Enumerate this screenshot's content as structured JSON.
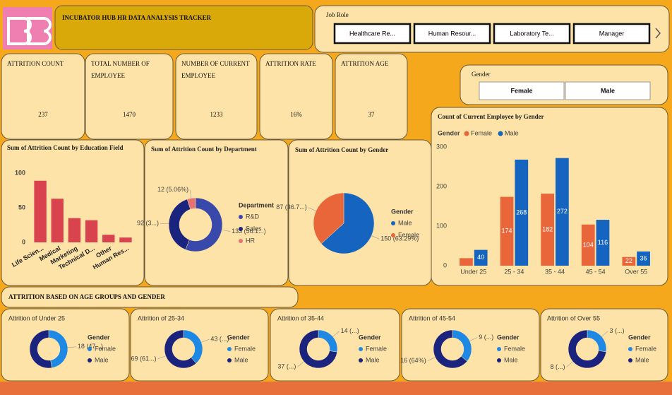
{
  "header": {
    "title": "INCUBATOR HUB HR DATA ANALYSIS TRACKER"
  },
  "job_role_slicer": {
    "label": "Job Role",
    "items": [
      "Healthcare Re...",
      "Human Resour...",
      "Laboratory Te...",
      "Manager"
    ]
  },
  "gender_slicer": {
    "label": "Gender",
    "items": [
      "Female",
      "Male"
    ]
  },
  "kpis": [
    {
      "label": "ATTRITION COUNT",
      "value": "237"
    },
    {
      "label": "TOTAL NUMBER OF EMPLOYEE",
      "value": "1470"
    },
    {
      "label": "NUMBER OF CURRENT EMPLOYEE",
      "value": "1233"
    },
    {
      "label": "ATTRITION RATE",
      "value": "16%"
    },
    {
      "label": "ATTRITION AGE",
      "value": "37"
    }
  ],
  "section_title": "ATTRITION BASED ON AGE GROUPS AND GENDER",
  "chart_data": [
    {
      "type": "bar",
      "title": "Sum of Attrition Count by Education Field",
      "categories": [
        "Life Scien...",
        "Medical",
        "Marketing",
        "Technical D...",
        "Other",
        "Human Res..."
      ],
      "values": [
        89,
        63,
        35,
        32,
        11,
        7
      ],
      "color": "#d9434e",
      "ylim": [
        0,
        100
      ],
      "yticks": [
        0,
        50,
        100
      ],
      "grid": false
    },
    {
      "type": "pie",
      "donut": true,
      "title": "Sum of Attrition Count by Department",
      "legend_title": "Department",
      "categories": [
        "R&D",
        "Sales",
        "HR"
      ],
      "values": [
        133,
        92,
        12
      ],
      "value_labels": [
        "133 (56.1...)",
        "92 (3...)",
        "12 (5.06%)"
      ],
      "colors": [
        "#3949ab",
        "#1a237e",
        "#e57373"
      ]
    },
    {
      "type": "pie",
      "donut": false,
      "title": "Sum of Attrition Count by Gender",
      "legend_title": "Gender",
      "categories": [
        "Male",
        "Female"
      ],
      "values": [
        150,
        87
      ],
      "value_labels": [
        "150 (63.29%)",
        "87 (36.7...)"
      ],
      "colors": [
        "#1565c0",
        "#e8663a"
      ]
    },
    {
      "type": "bar",
      "title": "Count of Current Employee by Gender",
      "legend_title": "Gender",
      "categories": [
        "Under 25",
        "25 - 34",
        "35 - 44",
        "45 - 54",
        "Over 55"
      ],
      "series": [
        {
          "name": "Female",
          "color": "#e8663a",
          "values": [
            19,
            174,
            182,
            104,
            22
          ],
          "value_labels": [
            null,
            "174",
            "182",
            "104",
            "22"
          ]
        },
        {
          "name": "Male",
          "color": "#1565c0",
          "values": [
            40,
            268,
            272,
            116,
            36
          ],
          "value_labels": [
            "40",
            "268",
            "272",
            "116",
            "36"
          ]
        }
      ],
      "ylim": [
        0,
        300
      ],
      "yticks": [
        0,
        100,
        200,
        300
      ],
      "grid": false
    },
    {
      "type": "pie",
      "donut": true,
      "title": "Attrition of Under 25",
      "legend_title": "Gender",
      "categories": [
        "Female",
        "Male"
      ],
      "values": [
        18,
        20
      ],
      "value_labels": [
        "18 (47...)",
        null
      ],
      "colors": [
        "#1e88e5",
        "#1a237e"
      ]
    },
    {
      "type": "pie",
      "donut": true,
      "title": "Attrition of 25-34",
      "legend_title": "Gender",
      "categories": [
        "Female",
        "Male"
      ],
      "values": [
        43,
        69
      ],
      "value_labels": [
        "43 (...)",
        "69 (61...)"
      ],
      "colors": [
        "#1e88e5",
        "#1a237e"
      ]
    },
    {
      "type": "pie",
      "donut": true,
      "title": "Attrition of 35-44",
      "legend_title": "Gender",
      "categories": [
        "Female",
        "Male"
      ],
      "values": [
        14,
        37
      ],
      "value_labels": [
        "14 (...)",
        "37 (...)"
      ],
      "colors": [
        "#1e88e5",
        "#1a237e"
      ]
    },
    {
      "type": "pie",
      "donut": true,
      "title": "Attrition of 45-54",
      "legend_title": "Gender",
      "categories": [
        "Female",
        "Male"
      ],
      "values": [
        9,
        16
      ],
      "value_labels": [
        "9 (...)",
        "16 (64%)"
      ],
      "colors": [
        "#1e88e5",
        "#1a237e"
      ]
    },
    {
      "type": "pie",
      "donut": true,
      "title": "Attrition of Over 55",
      "legend_title": "Gender",
      "categories": [
        "Female",
        "Male"
      ],
      "values": [
        3,
        8
      ],
      "value_labels": [
        "3 (...)",
        "8 (...)"
      ],
      "colors": [
        "#1e88e5",
        "#1a237e"
      ]
    }
  ]
}
